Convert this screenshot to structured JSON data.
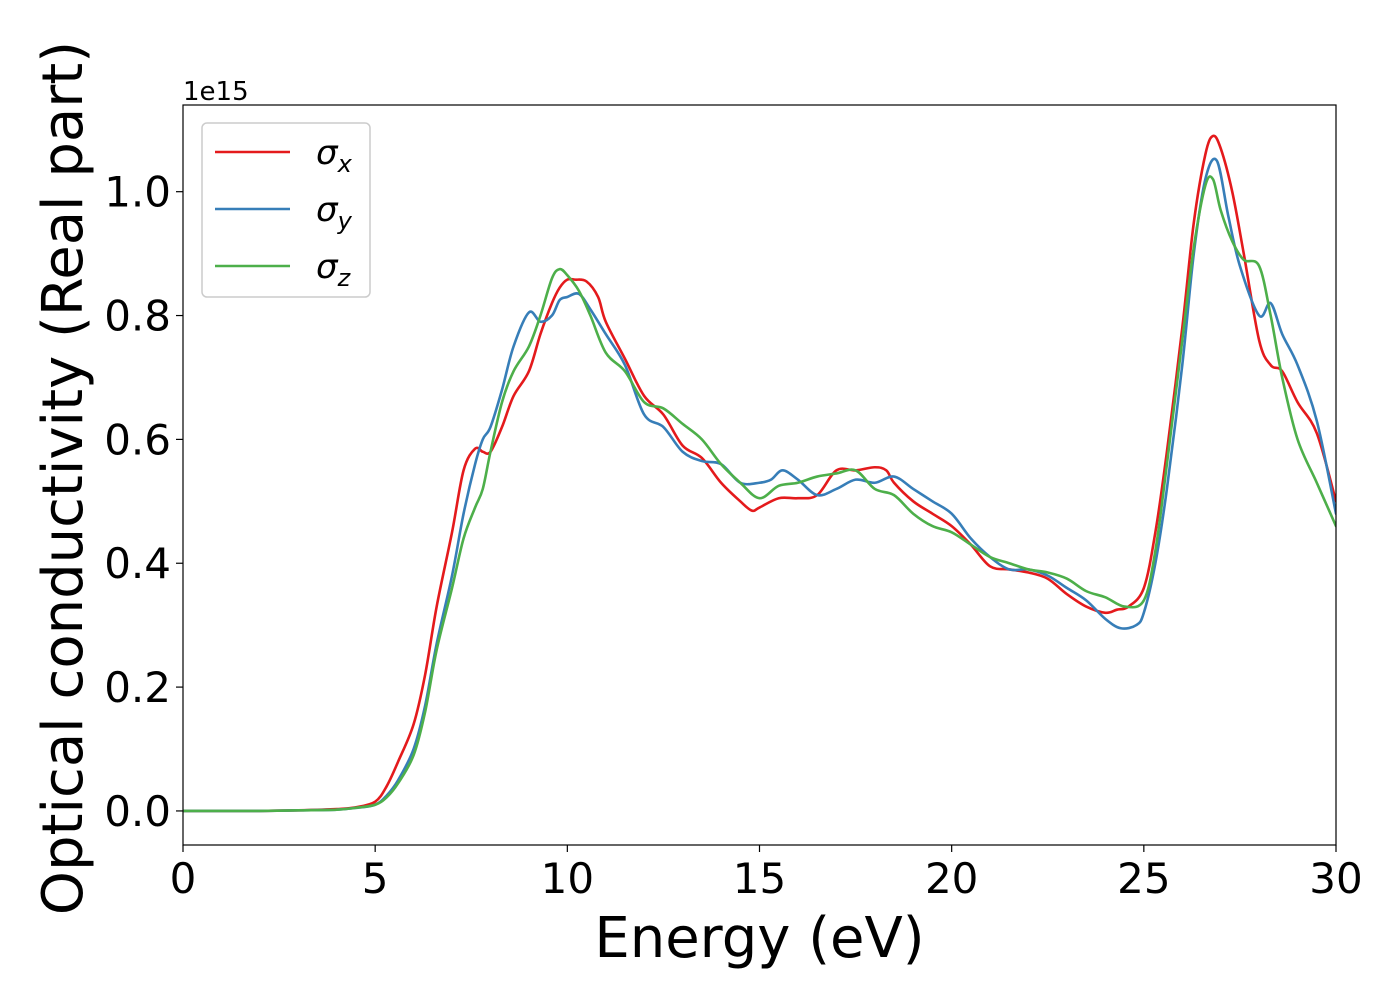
{
  "chart_data": {
    "type": "line",
    "title": "",
    "xlabel": "Energy (eV)",
    "ylabel": "Optical conductivity (Real part)",
    "y_offset_label": "1e15",
    "xlim": [
      0,
      30
    ],
    "ylim": [
      -0.055,
      1.14
    ],
    "xticks": [
      0,
      5,
      10,
      15,
      20,
      25,
      30
    ],
    "xtick_labels": [
      "0",
      "5",
      "10",
      "15",
      "20",
      "25",
      "30"
    ],
    "yticks": [
      0.0,
      0.2,
      0.4,
      0.6,
      0.8,
      1.0
    ],
    "ytick_labels": [
      "0.0",
      "0.2",
      "0.4",
      "0.6",
      "0.8",
      "1.0"
    ],
    "grid": false,
    "legend_position": "upper-left",
    "series": [
      {
        "name": "σx",
        "symbol": "σ",
        "subscript": "x",
        "color": "#e41a1c",
        "x": [
          0,
          1,
          2,
          3,
          4,
          4.5,
          5,
          5.3,
          5.6,
          6,
          6.3,
          6.6,
          7,
          7.3,
          7.6,
          7.8,
          8,
          8.3,
          8.6,
          9,
          9.3,
          9.6,
          9.8,
          10,
          10.2,
          10.5,
          10.8,
          11,
          11.5,
          12,
          12.5,
          13,
          13.5,
          14,
          14.5,
          14.8,
          15,
          15.5,
          16,
          16.5,
          17,
          17.5,
          18,
          18.3,
          18.5,
          19,
          19.5,
          20,
          20.5,
          21,
          21.5,
          22,
          22.5,
          23,
          23.5,
          24,
          24.3,
          24.6,
          25,
          25.3,
          25.6,
          26,
          26.3,
          26.6,
          26.8,
          27,
          27.3,
          27.6,
          28,
          28.3,
          28.6,
          29,
          29.5,
          30
        ],
        "y": [
          0,
          0,
          0,
          0.001,
          0.003,
          0.006,
          0.015,
          0.04,
          0.08,
          0.14,
          0.22,
          0.33,
          0.45,
          0.55,
          0.585,
          0.58,
          0.58,
          0.62,
          0.67,
          0.71,
          0.77,
          0.82,
          0.845,
          0.858,
          0.858,
          0.855,
          0.83,
          0.79,
          0.73,
          0.67,
          0.64,
          0.59,
          0.57,
          0.53,
          0.5,
          0.485,
          0.49,
          0.505,
          0.505,
          0.51,
          0.55,
          0.55,
          0.555,
          0.55,
          0.53,
          0.5,
          0.48,
          0.46,
          0.43,
          0.395,
          0.39,
          0.385,
          0.375,
          0.35,
          0.33,
          0.32,
          0.325,
          0.33,
          0.36,
          0.45,
          0.58,
          0.78,
          0.95,
          1.06,
          1.09,
          1.07,
          1.0,
          0.9,
          0.76,
          0.72,
          0.71,
          0.66,
          0.61,
          0.5
        ]
      },
      {
        "name": "σy",
        "symbol": "σ",
        "subscript": "y",
        "color": "#377eb8",
        "x": [
          0,
          1,
          2,
          3,
          4,
          4.5,
          5,
          5.3,
          5.6,
          6,
          6.3,
          6.6,
          7,
          7.3,
          7.6,
          7.8,
          8,
          8.3,
          8.6,
          9,
          9.3,
          9.6,
          9.8,
          10,
          10.3,
          10.6,
          11,
          11.5,
          12,
          12.5,
          13,
          13.5,
          14,
          14.5,
          15,
          15.3,
          15.6,
          16,
          16.5,
          17,
          17.5,
          18,
          18.5,
          19,
          19.5,
          20,
          20.5,
          21,
          21.5,
          22,
          22.5,
          23,
          23.5,
          24,
          24.4,
          24.8,
          25,
          25.3,
          25.6,
          26,
          26.3,
          26.6,
          26.9,
          27.2,
          27.5,
          28,
          28.3,
          28.6,
          29,
          29.5,
          30
        ],
        "y": [
          0,
          0,
          0,
          0.001,
          0.002,
          0.005,
          0.01,
          0.025,
          0.05,
          0.1,
          0.17,
          0.27,
          0.38,
          0.48,
          0.56,
          0.6,
          0.62,
          0.68,
          0.75,
          0.805,
          0.79,
          0.8,
          0.825,
          0.83,
          0.835,
          0.81,
          0.77,
          0.72,
          0.64,
          0.62,
          0.58,
          0.565,
          0.56,
          0.53,
          0.53,
          0.535,
          0.55,
          0.535,
          0.51,
          0.52,
          0.535,
          0.53,
          0.54,
          0.52,
          0.5,
          0.48,
          0.44,
          0.41,
          0.39,
          0.39,
          0.38,
          0.36,
          0.34,
          0.31,
          0.295,
          0.3,
          0.32,
          0.4,
          0.52,
          0.72,
          0.9,
          1.02,
          1.05,
          0.96,
          0.88,
          0.8,
          0.82,
          0.77,
          0.72,
          0.63,
          0.48
        ]
      },
      {
        "name": "σz",
        "symbol": "σ",
        "subscript": "z",
        "color": "#4daf4a",
        "x": [
          0,
          1,
          2,
          3,
          4,
          4.5,
          5,
          5.3,
          5.6,
          6,
          6.3,
          6.6,
          7,
          7.3,
          7.6,
          7.8,
          8,
          8.3,
          8.6,
          9,
          9.3,
          9.6,
          9.8,
          10,
          10.3,
          10.6,
          11,
          11.5,
          12,
          12.5,
          13,
          13.5,
          14,
          14.5,
          15,
          15.5,
          16,
          16.5,
          17,
          17.5,
          18,
          18.5,
          19,
          19.5,
          20,
          20.5,
          21,
          21.5,
          22,
          22.5,
          23,
          23.5,
          24,
          24.5,
          25,
          25.3,
          25.6,
          26,
          26.3,
          26.6,
          26.8,
          27,
          27.3,
          27.6,
          28,
          28.3,
          28.6,
          29,
          29.5,
          30
        ],
        "y": [
          0,
          0,
          0,
          0.001,
          0.002,
          0.005,
          0.01,
          0.022,
          0.045,
          0.09,
          0.16,
          0.26,
          0.36,
          0.44,
          0.49,
          0.52,
          0.58,
          0.66,
          0.71,
          0.75,
          0.8,
          0.86,
          0.875,
          0.865,
          0.84,
          0.8,
          0.74,
          0.71,
          0.66,
          0.65,
          0.625,
          0.6,
          0.56,
          0.53,
          0.505,
          0.525,
          0.53,
          0.54,
          0.545,
          0.55,
          0.52,
          0.51,
          0.48,
          0.46,
          0.45,
          0.43,
          0.41,
          0.4,
          0.39,
          0.385,
          0.375,
          0.355,
          0.345,
          0.33,
          0.34,
          0.42,
          0.56,
          0.76,
          0.91,
          1.01,
          1.02,
          0.97,
          0.92,
          0.89,
          0.88,
          0.8,
          0.7,
          0.6,
          0.53,
          0.46
        ]
      }
    ]
  }
}
